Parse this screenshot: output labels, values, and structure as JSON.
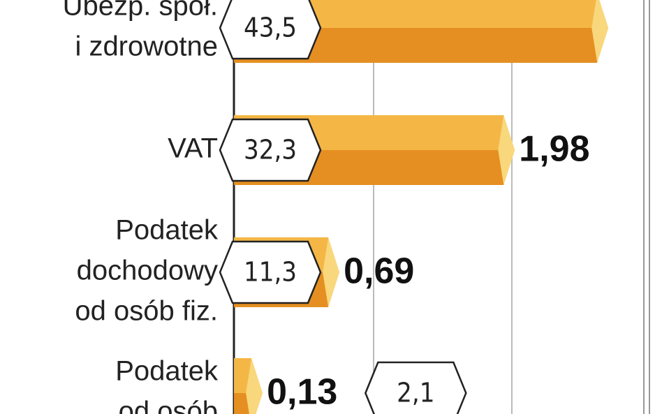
{
  "chart_data": {
    "type": "bar",
    "orientation": "horizontal",
    "categories": [
      [
        "Ubezp. społ.",
        "i zdrowotne"
      ],
      [
        "VAT"
      ],
      [
        "Podatek",
        "dochodowy",
        "od osób fiz."
      ],
      [
        "Podatek",
        "od osób"
      ]
    ],
    "values": [
      43.5,
      32.3,
      11.3,
      2.1
    ],
    "value_labels": [
      "43,5",
      "32,3",
      "11,3",
      "2,1"
    ],
    "amounts": [
      null,
      1.98,
      0.69,
      0.13
    ],
    "amount_labels": [
      null,
      "1,98",
      "0,69",
      "0,13"
    ],
    "xlim": [
      0,
      50
    ],
    "colors": {
      "top": "#f4b746",
      "bottom": "#e58f22",
      "tip": "#f9d77c"
    }
  }
}
